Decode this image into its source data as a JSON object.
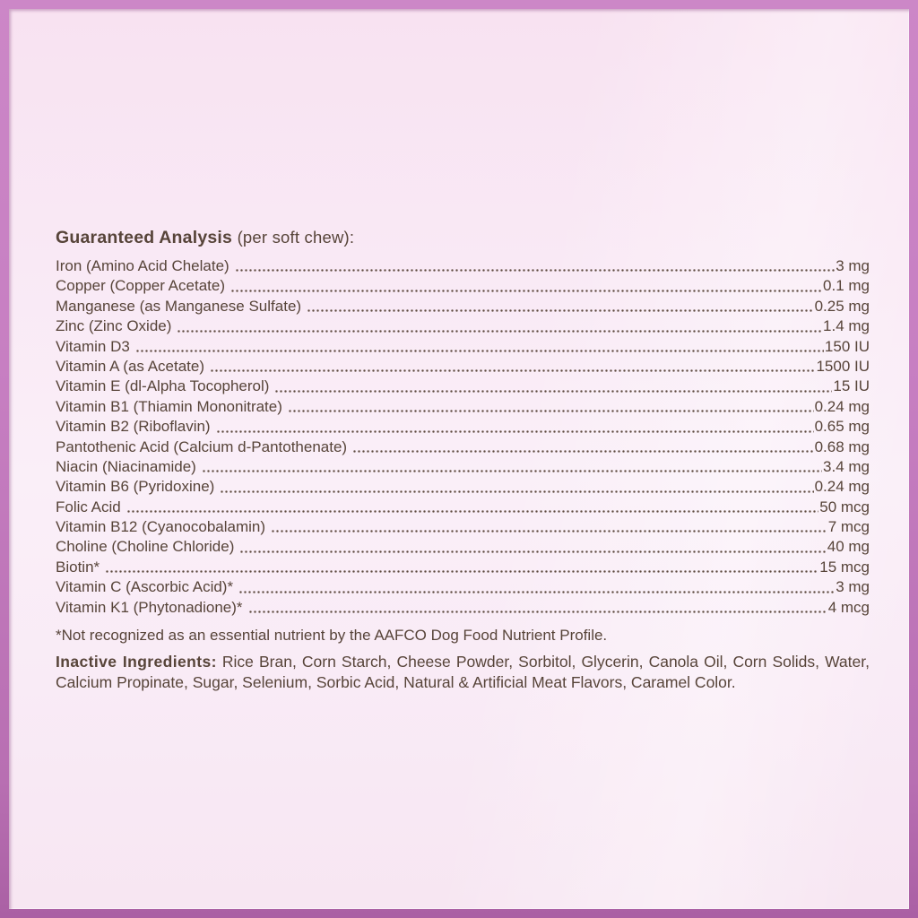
{
  "label": {
    "title": {
      "bold": "Guaranteed Analysis",
      "regular": "(per soft chew):"
    },
    "rows": [
      {
        "name": "Iron (Amino Acid Chelate)",
        "value": "3 mg"
      },
      {
        "name": "Copper (Copper Acetate)",
        "value": "0.1 mg"
      },
      {
        "name": "Manganese (as Manganese Sulfate)",
        "value": "0.25 mg"
      },
      {
        "name": "Zinc (Zinc Oxide)",
        "value": "1.4 mg"
      },
      {
        "name": "Vitamin D3",
        "value": "150 IU"
      },
      {
        "name": "Vitamin A (as Acetate)",
        "value": "1500 IU"
      },
      {
        "name": "Vitamin E (dl-Alpha Tocopherol)",
        "value": "15 IU"
      },
      {
        "name": "Vitamin B1 (Thiamin Mononitrate)",
        "value": "0.24 mg"
      },
      {
        "name": "Vitamin B2 (Riboflavin)",
        "value": "0.65 mg"
      },
      {
        "name": "Pantothenic Acid (Calcium d-Pantothenate)",
        "value": "0.68 mg"
      },
      {
        "name": "Niacin (Niacinamide)",
        "value": "3.4 mg"
      },
      {
        "name": "Vitamin B6 (Pyridoxine)",
        "value": "0.24 mg"
      },
      {
        "name": "Folic Acid",
        "value": "50 mcg"
      },
      {
        "name": "Vitamin B12 (Cyanocobalamin)",
        "value": "7 mcg"
      },
      {
        "name": "Choline (Choline Chloride)",
        "value": "40 mg"
      },
      {
        "name": "Biotin*",
        "value": "15 mcg"
      },
      {
        "name": "Vitamin C (Ascorbic Acid)*",
        "value": "3 mg"
      },
      {
        "name": "Vitamin K1 (Phytonadione)*",
        "value": "4 mcg"
      }
    ],
    "footnote": "*Not recognized as an essential nutrient by the AAFCO Dog Food Nutrient Profile.",
    "inactive": {
      "heading": "Inactive Ingredients:",
      "text": "Rice Bran, Corn Starch, Cheese Powder, Sorbitol, Glycerin, Canola Oil, Corn Solids, Water, Calcium Propinate, Sugar, Selenium, Sorbic Acid, Natural & Artificial Meat Flavors, Caramel Color."
    },
    "colors": {
      "border_purple": "#c77fc2",
      "background_pink": "#f9e9f5",
      "text_brown": "#574439"
    }
  }
}
